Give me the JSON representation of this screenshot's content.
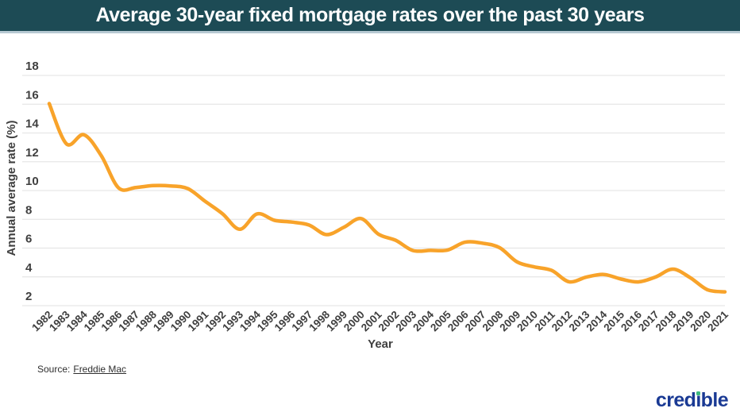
{
  "header": {
    "title": "Average 30-year fixed mortgage rates over the past 30 years",
    "bg_color": "#1d4b55",
    "text_color": "#ffffff",
    "border_color": "#b7c9d2"
  },
  "chart_data": {
    "type": "line",
    "title": "Average 30-year fixed mortgage rates over the past 30 years",
    "xlabel": "Year",
    "ylabel": "Annual average rate (%)",
    "x": [
      "1982",
      "1983",
      "1984",
      "1985",
      "1986",
      "1987",
      "1988",
      "1989",
      "1990",
      "1991",
      "1992",
      "1993",
      "1994",
      "1995",
      "1996",
      "1997",
      "1998",
      "1999",
      "2000",
      "2001",
      "2002",
      "2003",
      "2004",
      "2005",
      "2006",
      "2007",
      "2008",
      "2009",
      "2010",
      "2011",
      "2012",
      "2013",
      "2014",
      "2015",
      "2016",
      "2017",
      "2018",
      "2019",
      "2020",
      "2021"
    ],
    "series": [
      {
        "name": "30-year fixed mortgage rate",
        "values": [
          16.04,
          13.24,
          13.88,
          12.43,
          10.19,
          10.21,
          10.34,
          10.32,
          10.13,
          9.25,
          8.39,
          7.31,
          8.38,
          7.93,
          7.81,
          7.6,
          6.94,
          7.44,
          8.05,
          6.97,
          6.54,
          5.83,
          5.84,
          5.87,
          6.41,
          6.34,
          6.03,
          5.04,
          4.69,
          4.45,
          3.66,
          3.98,
          4.17,
          3.85,
          3.65,
          3.99,
          4.54,
          3.94,
          3.1,
          2.96
        ]
      }
    ],
    "ylim": [
      2,
      18
    ],
    "yticks": [
      2,
      4,
      6,
      8,
      10,
      12,
      14,
      16,
      18
    ],
    "grid": "horizontal",
    "legend": "none",
    "line_color": "#f8a32a",
    "gridline_color": "#e6e6e6",
    "tick_color": "#3f3f3f"
  },
  "source": {
    "prefix": "Source:",
    "link_text": "Freddie Mac"
  },
  "brand": {
    "name": "credible",
    "color": "#1a3a94",
    "dot_color": "#3dba7e"
  }
}
